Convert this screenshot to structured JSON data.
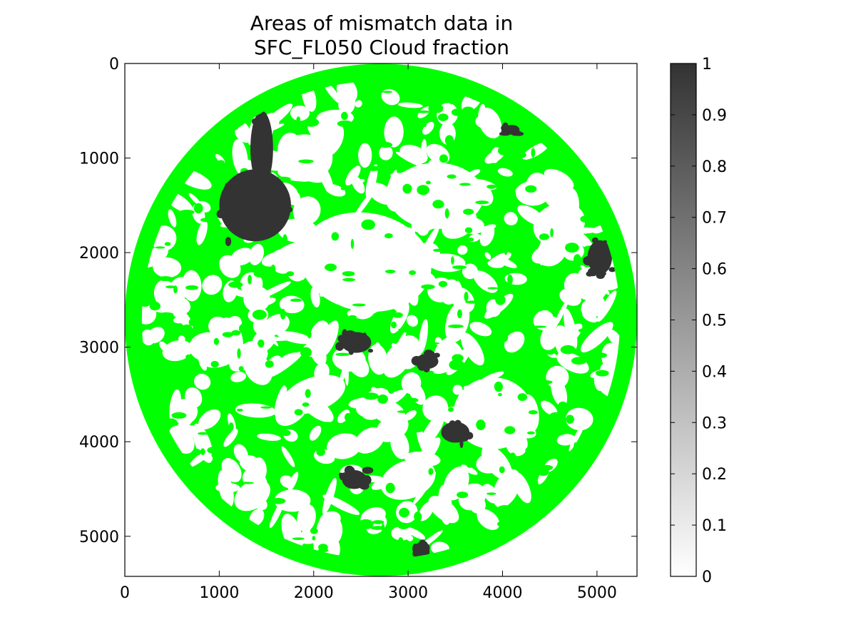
{
  "chart_data": {
    "type": "heatmap",
    "title_lines": [
      "Areas of mismatch data in",
      "SFC_FL050 Cloud fraction"
    ],
    "xlabel": "",
    "ylabel": "",
    "xlim": [
      0,
      5424
    ],
    "ylim": [
      5424,
      0
    ],
    "y_axis_inverted": true,
    "x_ticks": [
      0,
      1000,
      2000,
      3000,
      4000,
      5000
    ],
    "y_ticks": [
      0,
      1000,
      2000,
      3000,
      4000,
      5000
    ],
    "grid": false,
    "disk": {
      "center": [
        2712,
        2712
      ],
      "radius": 2712,
      "rim_width": 180,
      "colors": {
        "outside_disk": "#ffffff",
        "rim": "#00ff00",
        "mismatch_green": "#00ff00",
        "match_white": "#ffffff",
        "mismatch_dark": "#333333"
      },
      "dark_regions": [
        {
          "name": "north-pacific",
          "cx": 1380,
          "cy": 1500,
          "rx": 380,
          "ry": 380
        },
        {
          "name": "north-pacific-upper",
          "cx": 1450,
          "cy": 900,
          "rx": 120,
          "ry": 400
        },
        {
          "name": "northeast-small",
          "cx": 4100,
          "cy": 700,
          "rx": 80,
          "ry": 50
        },
        {
          "name": "east-edge",
          "cx": 5030,
          "cy": 2050,
          "rx": 130,
          "ry": 180
        },
        {
          "name": "central",
          "cx": 2450,
          "cy": 2950,
          "rx": 160,
          "ry": 110
        },
        {
          "name": "central-right",
          "cx": 3200,
          "cy": 3150,
          "rx": 120,
          "ry": 80
        },
        {
          "name": "south-central",
          "cx": 3500,
          "cy": 3900,
          "rx": 150,
          "ry": 110
        },
        {
          "name": "south-lower",
          "cx": 2430,
          "cy": 4400,
          "rx": 130,
          "ry": 100
        },
        {
          "name": "south-bottom",
          "cx": 3150,
          "cy": 5120,
          "rx": 80,
          "ry": 60
        }
      ]
    },
    "colorbar": {
      "range": [
        0,
        1
      ],
      "ticks": [
        "0",
        "0.1",
        "0.2",
        "0.3",
        "0.4",
        "0.5",
        "0.6",
        "0.7",
        "0.8",
        "0.9",
        "1"
      ],
      "color_low": "#ffffff",
      "color_high": "#333333"
    }
  }
}
